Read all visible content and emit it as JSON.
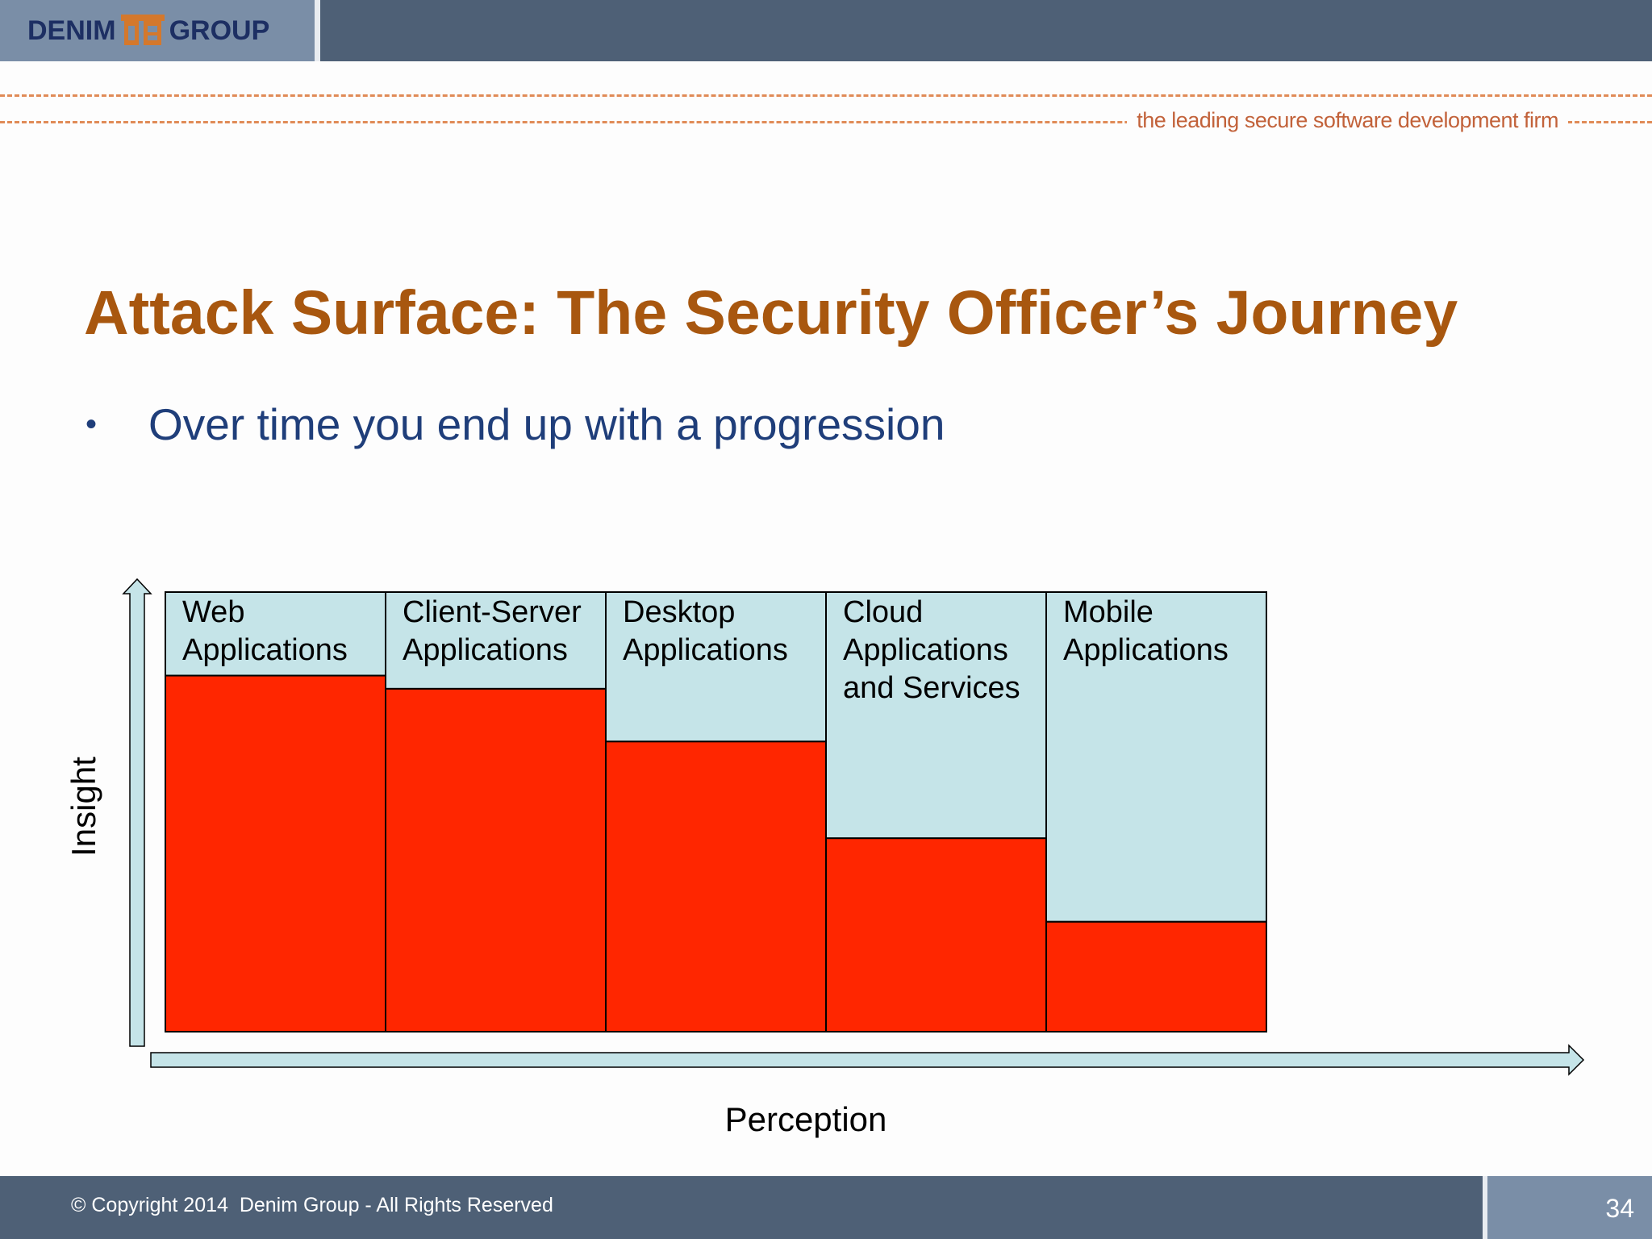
{
  "header": {
    "logo_left": "DENIM",
    "logo_right": "GROUP",
    "tagline": "the leading secure software development firm"
  },
  "slide": {
    "title": "Attack Surface: The Security Officer’s Journey",
    "bullet": "Over time you end up with a progression"
  },
  "chart_data": {
    "type": "bar",
    "stacked": true,
    "categories": [
      "Web Applications",
      "Client-Server Applications",
      "Desktop Applications",
      "Cloud Applications and Services",
      "Mobile Applications"
    ],
    "category_lines": [
      [
        "Web",
        "Applications"
      ],
      [
        "Client-Server",
        "Applications"
      ],
      [
        "Desktop",
        "Applications"
      ],
      [
        "Cloud",
        "Applications",
        "and Services"
      ],
      [
        "Mobile",
        "Applications"
      ]
    ],
    "series": [
      {
        "values": [
          81,
          78,
          66,
          44,
          25
        ],
        "color": "#ff2600"
      },
      {
        "values": [
          19,
          22,
          34,
          56,
          75
        ],
        "color": "#c5e4e8"
      }
    ],
    "xlabel": "Perception",
    "ylabel": "Insight",
    "ylim": [
      0,
      100
    ],
    "grid": false,
    "legend": "none"
  },
  "footer": {
    "copyright": "© Copyright 2014  Denim Group - All Rights Reserved",
    "page_number": "34"
  },
  "colors": {
    "header": "#4e6076",
    "title": "#a8570f",
    "bullet": "#1f3e7a",
    "accent_dashes": "#e08b57",
    "bar_insight": "#ff2600",
    "bar_remaining": "#c5e4e8"
  }
}
